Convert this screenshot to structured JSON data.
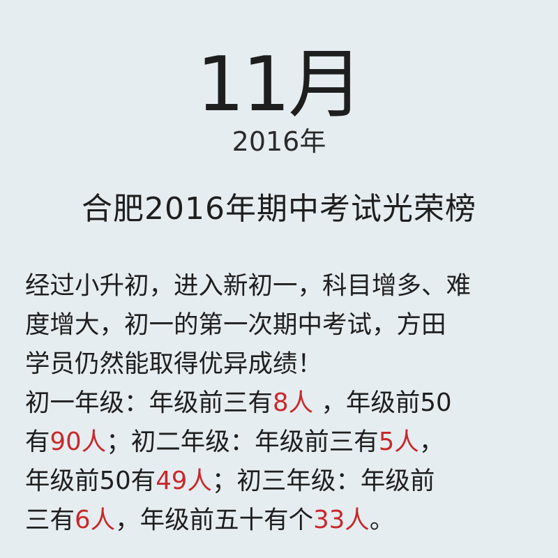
{
  "header": {
    "month": "11月",
    "year": "2016年"
  },
  "headline": "合肥2016年期中考试光荣榜",
  "intro": {
    "line1": "经过小升初，进入新初一，科目增多、难",
    "line2": "度增大，初一的第一次期中考试，方田",
    "line3": "学员仍然能取得优异成绩！"
  },
  "results": {
    "g1_label": "初一年级：年级前三有",
    "g1_top3": "8人",
    "g1_mid": " ，年级前50",
    "g1_has": "有",
    "g1_top50": "90人",
    "g2_label": "；初二年级：年级前三有",
    "g2_top3": "5人",
    "g2_comma": "，",
    "g2_prefix": "年级前50有",
    "g2_top50": "49人",
    "g3_label": "；初三年级：年级前",
    "g3_prefix": "三有",
    "g3_top3": "6人",
    "g3_mid": "，年级前五十有个",
    "g3_top50": "33人",
    "g3_end": "。"
  },
  "colors": {
    "background": "#e6edf0",
    "text": "#1e1e1e",
    "highlight": "#c8282a"
  }
}
